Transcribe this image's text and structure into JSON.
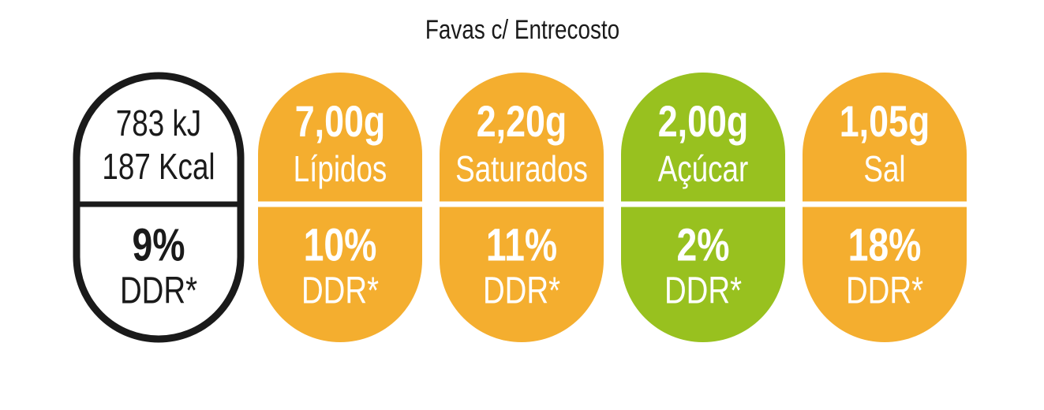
{
  "title": "Favas c/ Entrecosto",
  "energy": {
    "kj": "783 kJ",
    "kcal": "187 Kcal",
    "percent": "9%",
    "ddr": "DDR*"
  },
  "nutrients": [
    {
      "amount": "7,00g",
      "name": "Lípidos",
      "percent": "10%",
      "ddr": "DDR*",
      "color": "#f4ae2f"
    },
    {
      "amount": "2,20g",
      "name": "Saturados",
      "percent": "11%",
      "ddr": "DDR*",
      "color": "#f4ae2f"
    },
    {
      "amount": "2,00g",
      "name": "Açúcar",
      "percent": "2%",
      "ddr": "DDR*",
      "color": "#98c11f"
    },
    {
      "amount": "1,05g",
      "name": "Sal",
      "percent": "18%",
      "ddr": "DDR*",
      "color": "#f4ae2f"
    }
  ]
}
